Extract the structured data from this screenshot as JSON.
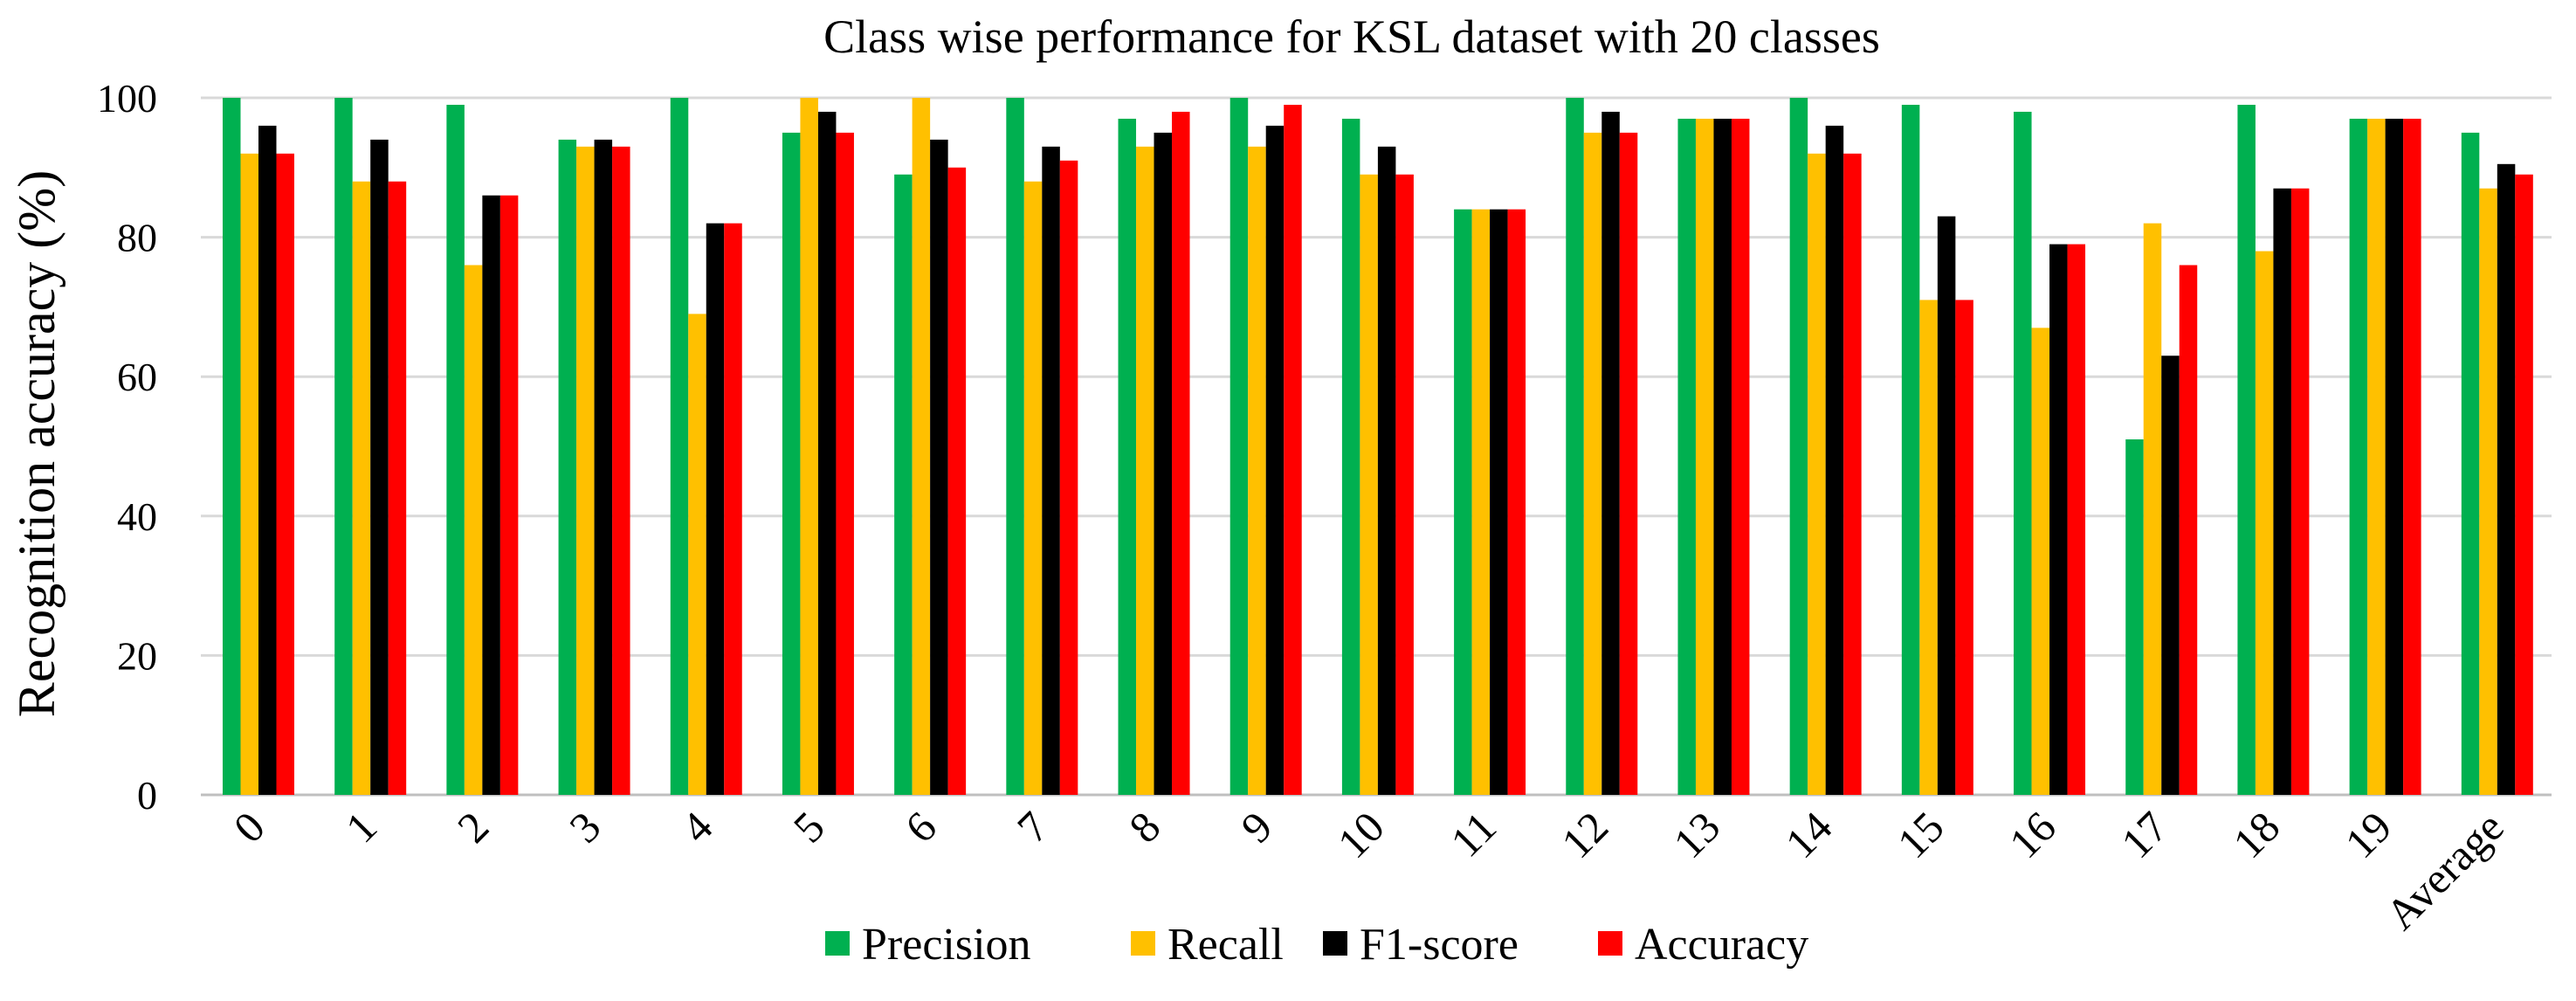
{
  "chart_data": {
    "type": "bar",
    "title": "Class wise performance for KSL dataset with 20 classes",
    "ylabel": "Recognition accuracy (%)",
    "xlabel": "",
    "ylim": [
      0,
      100
    ],
    "yticks": [
      0,
      20,
      40,
      60,
      80,
      100
    ],
    "grid": true,
    "legend_position": "bottom",
    "categories": [
      "0",
      "1",
      "2",
      "3",
      "4",
      "5",
      "6",
      "7",
      "8",
      "9",
      "10",
      "11",
      "12",
      "13",
      "14",
      "15",
      "16",
      "17",
      "18",
      "19",
      "Average"
    ],
    "series": [
      {
        "name": "Precision",
        "color": "#00b050",
        "values": [
          100,
          100,
          99,
          94,
          100,
          95,
          89,
          100,
          97,
          100,
          97,
          84,
          100,
          97,
          100,
          99,
          98,
          51,
          99,
          97,
          95
        ]
      },
      {
        "name": "Recall",
        "color": "#ffc000",
        "values": [
          92,
          88,
          76,
          93,
          69,
          100,
          100,
          88,
          93,
          93,
          89,
          84,
          95,
          97,
          92,
          71,
          67,
          82,
          78,
          97,
          87
        ]
      },
      {
        "name": "F1-score",
        "color": "#000000",
        "values": [
          96,
          94,
          86,
          94,
          82,
          98,
          94,
          93,
          95,
          96,
          93,
          84,
          98,
          97,
          96,
          83,
          79,
          63,
          87,
          97,
          90.5
        ]
      },
      {
        "name": "Accuracy",
        "color": "#ff0000",
        "values": [
          92,
          88,
          86,
          93,
          82,
          95,
          90,
          91,
          98,
          99,
          89,
          84,
          95,
          97,
          92,
          71,
          79,
          76,
          87,
          97,
          89
        ]
      }
    ]
  }
}
